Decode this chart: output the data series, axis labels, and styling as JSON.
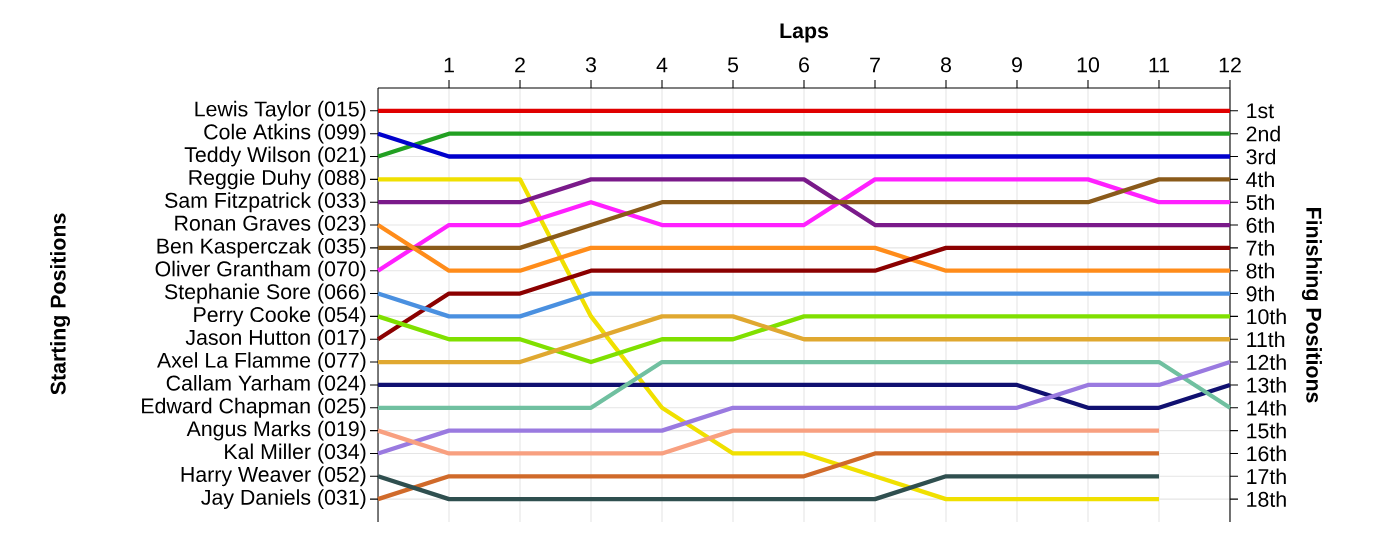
{
  "chart_data": {
    "type": "line",
    "xlabel": "Laps",
    "annotations": [
      "Starting Positions"
    ],
    "y2label": "Finishing Positions",
    "grid": true,
    "x": [
      0,
      1,
      2,
      3,
      4,
      5,
      6,
      7,
      8,
      9,
      10,
      11,
      12
    ],
    "xlim": [
      0,
      12
    ],
    "xticks": [
      1,
      2,
      3,
      4,
      5,
      6,
      7,
      8,
      9,
      10,
      11,
      12
    ],
    "y2lim": [
      19,
      0
    ],
    "y2ticks": [
      {
        "value": 1,
        "label": "1st"
      },
      {
        "value": 2,
        "label": "2nd"
      },
      {
        "value": 3,
        "label": "3rd"
      },
      {
        "value": 4,
        "label": "4th"
      },
      {
        "value": 5,
        "label": "5th"
      },
      {
        "value": 6,
        "label": "6th"
      },
      {
        "value": 7,
        "label": "7th"
      },
      {
        "value": 8,
        "label": "8th"
      },
      {
        "value": 9,
        "label": "9th"
      },
      {
        "value": 10,
        "label": "10th"
      },
      {
        "value": 11,
        "label": "11th"
      },
      {
        "value": 12,
        "label": "12th"
      },
      {
        "value": 13,
        "label": "13th"
      },
      {
        "value": 14,
        "label": "14th"
      },
      {
        "value": 15,
        "label": "15th"
      },
      {
        "value": 16,
        "label": "16th"
      },
      {
        "value": 17,
        "label": "17th"
      },
      {
        "value": 18,
        "label": "18th"
      }
    ],
    "series": [
      {
        "name": "Lewis Taylor (015)",
        "axis": "y2",
        "color": "#e00000",
        "values": [
          1,
          1,
          1,
          1,
          1,
          1,
          1,
          1,
          1,
          1,
          1,
          1,
          1
        ]
      },
      {
        "name": "Teddy Wilson (021)",
        "axis": "y2",
        "color": "#22a022",
        "values": [
          3,
          2,
          2,
          2,
          2,
          2,
          2,
          2,
          2,
          2,
          2,
          2,
          2
        ]
      },
      {
        "name": "Cole Atkins (099)",
        "axis": "y2",
        "color": "#0000cc",
        "values": [
          2,
          3,
          3,
          3,
          3,
          3,
          3,
          3,
          3,
          3,
          3,
          3,
          3
        ]
      },
      {
        "name": "Reggie Duhy (088)",
        "axis": "y2",
        "color": "#f0e000",
        "values": [
          4,
          4,
          4,
          10,
          14,
          16,
          16,
          17,
          18,
          18,
          18,
          18,
          null
        ]
      },
      {
        "name": "Sam Fitzpatrick (033)",
        "axis": "y2",
        "color": "#7a1a8a",
        "values": [
          5,
          5,
          5,
          4,
          4,
          4,
          4,
          6,
          6,
          6,
          6,
          6,
          6
        ]
      },
      {
        "name": "Oliver Grantham (070)",
        "axis": "y2",
        "color": "#ff20ff",
        "values": [
          8,
          6,
          6,
          5,
          6,
          6,
          6,
          4,
          4,
          4,
          4,
          5,
          5
        ]
      },
      {
        "name": "Ben Kasperczak (035)",
        "axis": "y2",
        "color": "#8a5a1a",
        "values": [
          7,
          7,
          7,
          6,
          5,
          5,
          5,
          5,
          5,
          5,
          5,
          4,
          4
        ]
      },
      {
        "name": "Ronan Graves (023)",
        "axis": "y2",
        "color": "#ff8c1a",
        "values": [
          6,
          8,
          8,
          7,
          7,
          7,
          7,
          7,
          8,
          8,
          8,
          8,
          8
        ]
      },
      {
        "name": "Jason Hutton (017)",
        "axis": "y2",
        "color": "#8b0000",
        "values": [
          11,
          9,
          9,
          8,
          8,
          8,
          8,
          8,
          7,
          7,
          7,
          7,
          7
        ]
      },
      {
        "name": "Stephanie Sore (066)",
        "axis": "y2",
        "color": "#4a90e0",
        "values": [
          9,
          10,
          10,
          9,
          9,
          9,
          9,
          9,
          9,
          9,
          9,
          9,
          9
        ]
      },
      {
        "name": "Perry Cooke (054)",
        "axis": "y2",
        "color": "#80e000",
        "values": [
          10,
          11,
          11,
          12,
          11,
          11,
          10,
          10,
          10,
          10,
          10,
          10,
          10
        ]
      },
      {
        "name": "Axel La Flamme (077)",
        "axis": "y2",
        "color": "#e0a830",
        "values": [
          12,
          12,
          12,
          11,
          10,
          10,
          11,
          11,
          11,
          11,
          11,
          11,
          11
        ]
      },
      {
        "name": "Callam Yarham (024)",
        "axis": "y2",
        "color": "#101070",
        "values": [
          13,
          13,
          13,
          13,
          13,
          13,
          13,
          13,
          13,
          13,
          14,
          14,
          13
        ]
      },
      {
        "name": "Edward Chapman (025)",
        "axis": "y2",
        "color": "#70c0a0",
        "values": [
          14,
          14,
          14,
          14,
          12,
          12,
          12,
          12,
          12,
          12,
          12,
          12,
          14
        ]
      },
      {
        "name": "Kal Miller (034)",
        "axis": "y2",
        "color": "#9a7ae0",
        "values": [
          16,
          15,
          15,
          15,
          15,
          14,
          14,
          14,
          14,
          14,
          13,
          13,
          12
        ]
      },
      {
        "name": "Angus Marks (019)",
        "axis": "y2",
        "color": "#f8a080",
        "values": [
          15,
          16,
          16,
          16,
          16,
          15,
          15,
          15,
          15,
          15,
          15,
          15,
          null
        ]
      },
      {
        "name": "Jay Daniels (031)",
        "axis": "y2",
        "color": "#d06a2a",
        "values": [
          18,
          17,
          17,
          17,
          17,
          17,
          17,
          16,
          16,
          16,
          16,
          16,
          null
        ]
      },
      {
        "name": "Harry Weaver (052)",
        "axis": "y2",
        "color": "#2f4f4f",
        "values": [
          17,
          18,
          18,
          18,
          18,
          18,
          18,
          18,
          17,
          17,
          17,
          17,
          null
        ]
      }
    ]
  }
}
